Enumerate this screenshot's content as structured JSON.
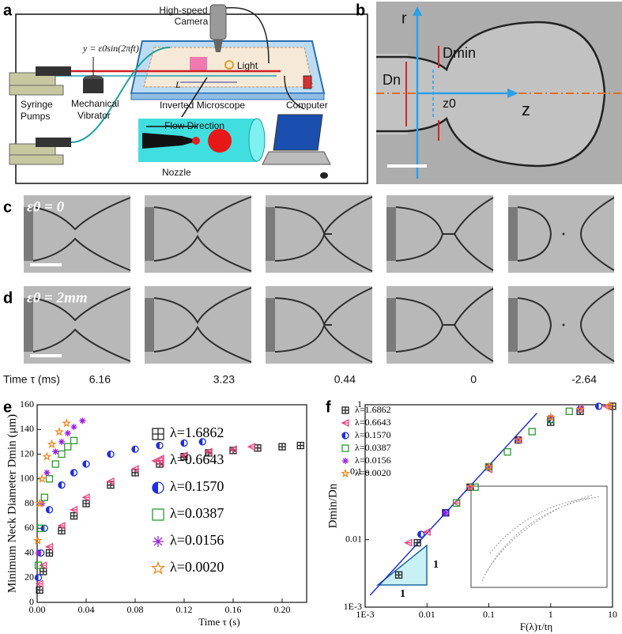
{
  "panel_labels": [
    "a",
    "b",
    "c",
    "d",
    "e",
    "f"
  ],
  "schematic": {
    "camera": [
      "High-speed",
      "Camera"
    ],
    "equation": "y = ε0sin(2πft)",
    "light": "Light",
    "length": "L",
    "pumps": [
      "Syringe",
      "Pumps"
    ],
    "vibrator": [
      "Mechanical",
      "Vibrator"
    ],
    "microscope": "Inverted Microscope",
    "computer": "Computer",
    "flow": "Flow Direction",
    "nozzle": "Nozzle"
  },
  "panel_b": {
    "r": "r",
    "dmin": "Dmin",
    "dn": "Dn",
    "z0": "z0",
    "z": "z"
  },
  "rows": [
    {
      "label": "ε0 = 0"
    },
    {
      "label": "ε0 = 2mm"
    }
  ],
  "time_axis": {
    "label": "Time τ (ms)",
    "values": [
      6.16,
      3.23,
      0.44,
      0,
      -2.64
    ]
  },
  "chart_data": [
    {
      "type": "scatter",
      "ylabel": "Minimum Neck Diameter Dmin (μm)",
      "xlabel": "Time τ (s)",
      "xlim": [
        0,
        0.22
      ],
      "ylim": [
        0,
        160
      ],
      "xticks": [
        {
          "value": 0,
          "label": "0.00"
        },
        0.04,
        0.08,
        0.12,
        0.16,
        {
          "value": 0.2,
          "label": "0.20"
        }
      ],
      "yticks": [
        0,
        20,
        40,
        60,
        80,
        100,
        120,
        140,
        160
      ],
      "series": [
        {
          "name": "λ=1.6862",
          "color": "#222222",
          "marker": "square-cross",
          "x": [
            0.002,
            0.005,
            0.01,
            0.02,
            0.03,
            0.04,
            0.06,
            0.08,
            0.1,
            0.12,
            0.14,
            0.16,
            0.18,
            0.2,
            0.215
          ],
          "values": [
            10,
            25,
            40,
            58,
            70,
            80,
            95,
            105,
            112,
            118,
            121,
            123,
            125,
            126,
            127
          ]
        },
        {
          "name": "λ=0.6643",
          "color": "#e8457f",
          "marker": "triangle-left",
          "x": [
            0.002,
            0.005,
            0.01,
            0.02,
            0.03,
            0.04,
            0.06,
            0.08,
            0.1,
            0.12,
            0.14,
            0.16,
            0.175
          ],
          "values": [
            15,
            30,
            45,
            62,
            75,
            85,
            98,
            108,
            115,
            119,
            122,
            124,
            126
          ]
        },
        {
          "name": "λ=0.1570",
          "color": "#1f2ee0",
          "marker": "half-circle",
          "x": [
            0.001,
            0.003,
            0.006,
            0.01,
            0.02,
            0.03,
            0.04,
            0.06,
            0.08,
            0.1,
            0.12,
            0.135
          ],
          "values": [
            20,
            40,
            60,
            75,
            95,
            105,
            112,
            120,
            124,
            127,
            129,
            130
          ]
        },
        {
          "name": "λ=0.0387",
          "color": "#2a9a2a",
          "marker": "square",
          "x": [
            0.001,
            0.003,
            0.006,
            0.01,
            0.015,
            0.02,
            0.025,
            0.03
          ],
          "values": [
            30,
            60,
            85,
            100,
            112,
            120,
            126,
            131
          ]
        },
        {
          "name": "λ=0.0156",
          "color": "#9b1fe0",
          "marker": "asterisk",
          "x": [
            0.001,
            0.004,
            0.008,
            0.015,
            0.02,
            0.025,
            0.03,
            0.037
          ],
          "values": [
            40,
            80,
            105,
            122,
            130,
            137,
            142,
            147
          ]
        },
        {
          "name": "λ=0.0020",
          "color": "#f08a1e",
          "marker": "star",
          "x": [
            0.0005,
            0.002,
            0.004,
            0.008,
            0.012,
            0.018,
            0.024
          ],
          "values": [
            50,
            80,
            100,
            118,
            128,
            138,
            145
          ]
        }
      ]
    },
    {
      "type": "scatter",
      "ylabel": "Dmin/Dn",
      "xlabel": "F(λ)τ/tη",
      "xscale": "log",
      "yscale": "log",
      "xlim": [
        0.001,
        10
      ],
      "ylim": [
        0.001,
        1
      ],
      "xticks": [
        {
          "value": 0.001,
          "label": "1E-3"
        },
        0.01,
        0.1,
        1,
        10
      ],
      "yticks": [
        {
          "value": 0.001,
          "label": "1E-3"
        },
        0.01,
        0.1,
        1
      ],
      "annotations": [
        "1",
        "1"
      ],
      "fit_line": {
        "color": "#1f2ee0",
        "x": [
          0.0012,
          0.6
        ],
        "values": [
          0.0015,
          0.75
        ]
      },
      "series": [
        {
          "name": "λ=1.6862",
          "color": "#222222",
          "marker": "square-cross",
          "x": [
            0.0035,
            0.007,
            0.02,
            0.05,
            0.1,
            0.3,
            1,
            3,
            10
          ],
          "values": [
            0.003,
            0.009,
            0.025,
            0.06,
            0.12,
            0.3,
            0.55,
            0.8,
            0.95
          ]
        },
        {
          "name": "λ=0.6643",
          "color": "#e8457f",
          "marker": "triangle-left",
          "x": [
            0.005,
            0.01,
            0.03,
            0.1,
            0.3,
            1,
            3,
            8
          ],
          "values": [
            0.009,
            0.013,
            0.035,
            0.11,
            0.3,
            0.6,
            0.85,
            0.95
          ]
        },
        {
          "name": "λ=0.1570",
          "color": "#1f2ee0",
          "marker": "half-circle",
          "x": [
            0.008,
            0.02,
            0.05,
            0.1,
            0.3,
            1,
            3,
            6
          ],
          "values": [
            0.012,
            0.025,
            0.06,
            0.12,
            0.3,
            0.6,
            0.85,
            0.95
          ]
        },
        {
          "name": "λ=0.0387",
          "color": "#2a9a2a",
          "marker": "square",
          "x": [
            0.03,
            0.06,
            0.1,
            0.2,
            0.5,
            1,
            2
          ],
          "values": [
            0.035,
            0.06,
            0.12,
            0.2,
            0.4,
            0.6,
            0.8
          ]
        },
        {
          "name": "λ=0.0156",
          "color": "#9b1fe0",
          "marker": "asterisk",
          "x": [
            0.02,
            0.05,
            0.1,
            0.3,
            1,
            3
          ],
          "values": [
            0.025,
            0.06,
            0.12,
            0.3,
            0.65,
            0.9
          ]
        },
        {
          "name": "λ=0.0020",
          "color": "#f08a1e",
          "marker": "star",
          "x": [
            0.05,
            0.1,
            0.3,
            1,
            3,
            9
          ],
          "values": [
            0.06,
            0.12,
            0.3,
            0.65,
            0.85,
            0.97
          ]
        }
      ]
    }
  ]
}
